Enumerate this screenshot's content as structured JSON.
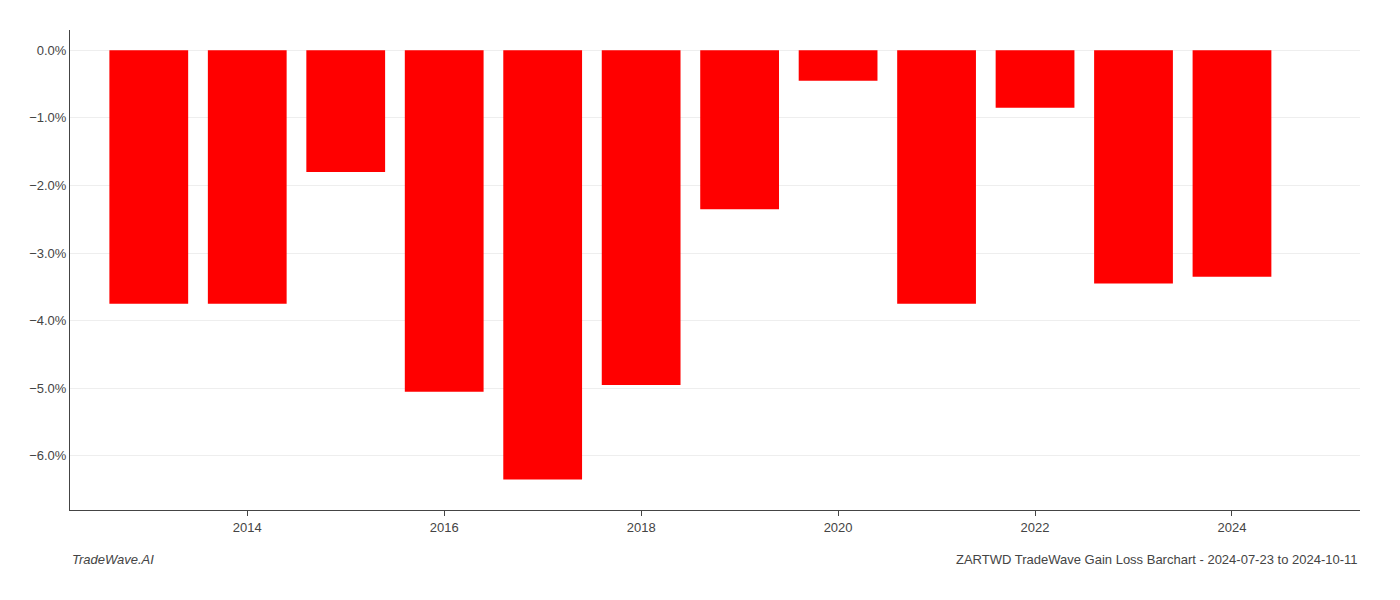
{
  "chart_data": {
    "type": "bar",
    "title": "ZARTWD TradeWave Gain Loss Barchart - 2024-07-23 to 2024-10-11",
    "annotations": [
      "TradeWave.AI"
    ],
    "x": [
      2013,
      2014,
      2015,
      2016,
      2017,
      2018,
      2019,
      2020,
      2021,
      2022,
      2023,
      2024
    ],
    "values": [
      -3.75,
      -3.75,
      -1.8,
      -5.05,
      -6.35,
      -4.95,
      -2.35,
      -0.45,
      -3.75,
      -0.85,
      -3.45,
      -3.35
    ],
    "color": "#ff0000",
    "xlim": [
      2012.2,
      2025.3
    ],
    "xticks": [
      2014,
      2016,
      2018,
      2020,
      2022,
      2024
    ],
    "ylim": [
      -6.8,
      0.3
    ],
    "yticks": [
      {
        "value": 0.0,
        "label": "0.0%"
      },
      {
        "value": -1.0,
        "label": "−1.0%"
      },
      {
        "value": -2.0,
        "label": "−2.0%"
      },
      {
        "value": -3.0,
        "label": "−3.0%"
      },
      {
        "value": -4.0,
        "label": "−4.0%"
      },
      {
        "value": -5.0,
        "label": "−5.0%"
      },
      {
        "value": -6.0,
        "label": "−6.0%"
      }
    ],
    "grid": true
  }
}
